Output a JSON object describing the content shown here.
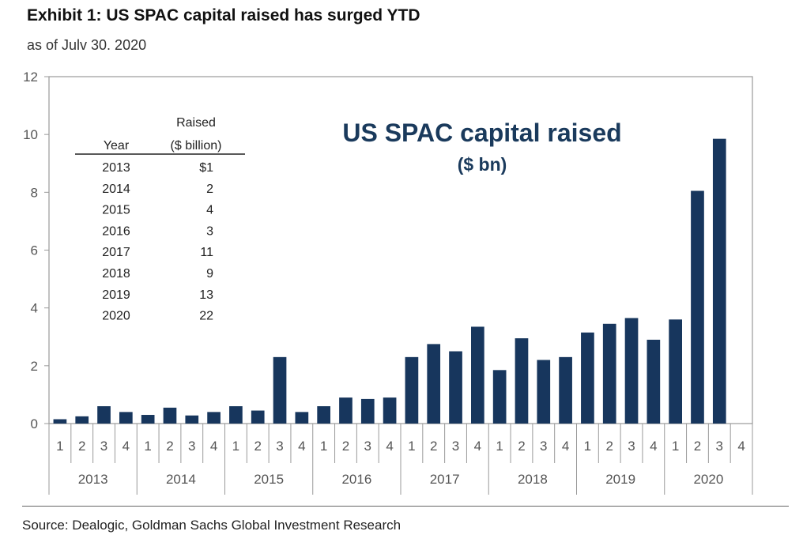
{
  "header": {
    "title": "Exhibit 1: US SPAC capital raised has surged YTD",
    "subtitle": "as of Julv 30. 2020"
  },
  "footer": {
    "source": "Source: Dealogic, Goldman Sachs Global Investment Research"
  },
  "colors": {
    "bar": "#17365d",
    "annotation": "#1a3a5c",
    "axis": "#999999"
  },
  "chart_data": {
    "type": "bar",
    "annotation": {
      "line1": "US SPAC capital raised",
      "line2": "($ bn)"
    },
    "categories": [
      "1",
      "2",
      "3",
      "4",
      "1",
      "2",
      "3",
      "4",
      "1",
      "2",
      "3",
      "4",
      "1",
      "2",
      "3",
      "4",
      "1",
      "2",
      "3",
      "4",
      "1",
      "2",
      "3",
      "4",
      "1",
      "2",
      "3",
      "4",
      "1",
      "2",
      "3",
      "4"
    ],
    "groups": [
      "2013",
      "2014",
      "2015",
      "2016",
      "2017",
      "2018",
      "2019",
      "2020"
    ],
    "values": [
      0.15,
      0.25,
      0.6,
      0.4,
      0.3,
      0.55,
      0.28,
      0.4,
      0.6,
      0.45,
      2.3,
      0.4,
      0.6,
      0.9,
      0.85,
      0.9,
      2.3,
      2.75,
      2.5,
      3.35,
      1.85,
      2.95,
      2.2,
      2.3,
      3.15,
      3.45,
      3.65,
      2.9,
      3.6,
      8.05,
      9.85,
      null
    ],
    "yticks": [
      "0",
      "2",
      "4",
      "6",
      "8",
      "10",
      "12"
    ],
    "ylim": [
      0,
      12
    ],
    "grid": false,
    "table": {
      "header_year": "Year",
      "header_raised_line1": "Raised",
      "header_raised_line2": "($ billion)",
      "rows": [
        {
          "year": "2013",
          "raised": "$1"
        },
        {
          "year": "2014",
          "raised": "2"
        },
        {
          "year": "2015",
          "raised": "4"
        },
        {
          "year": "2016",
          "raised": "3"
        },
        {
          "year": "2017",
          "raised": "11"
        },
        {
          "year": "2018",
          "raised": "9"
        },
        {
          "year": "2019",
          "raised": "13"
        },
        {
          "year": "2020",
          "raised": "22"
        }
      ]
    }
  }
}
